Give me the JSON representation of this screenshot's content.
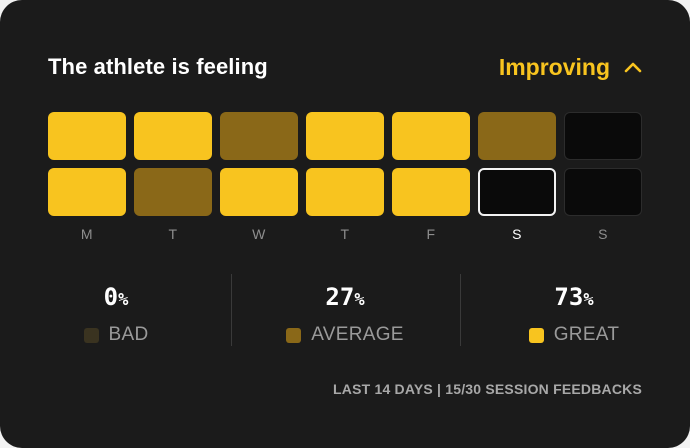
{
  "header": {
    "title": "The athlete is feeling",
    "trend_label": "Improving",
    "trend_icon": "chevron-up-icon"
  },
  "colors": {
    "great": "#f8c41f",
    "average": "#8a6818",
    "bad": "#3a3320",
    "empty": "#0a0a0a",
    "background": "#1b1b1b"
  },
  "grid": {
    "days": [
      "M",
      "T",
      "W",
      "T",
      "F",
      "S",
      "S"
    ],
    "current_day_index": 5,
    "rows": [
      [
        "great",
        "great",
        "average",
        "great",
        "great",
        "average",
        "empty"
      ],
      [
        "great",
        "average",
        "great",
        "great",
        "great",
        "today",
        "empty"
      ]
    ]
  },
  "stats": [
    {
      "value": "0",
      "unit": "%",
      "label": "BAD",
      "swatch": "#3a3320"
    },
    {
      "value": "27",
      "unit": "%",
      "label": "AVERAGE",
      "swatch": "#8a6818"
    },
    {
      "value": "73",
      "unit": "%",
      "label": "GREAT",
      "swatch": "#f8c41f"
    }
  ],
  "footer": {
    "text": "LAST 14 DAYS | 15/30 SESSION FEEDBACKS"
  }
}
